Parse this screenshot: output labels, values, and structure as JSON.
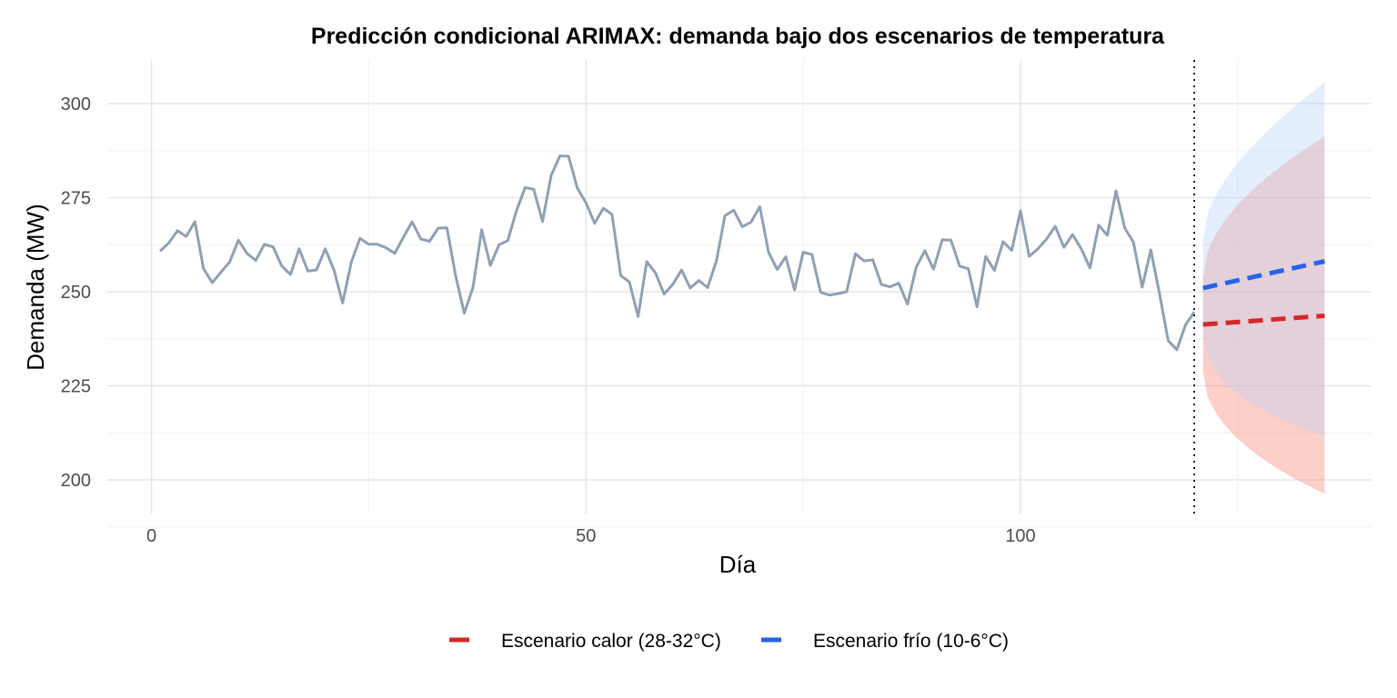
{
  "chart_data": {
    "type": "line",
    "title": "Predicción condicional ARIMAX: demanda bajo dos escenarios de temperatura",
    "xlabel": "Día",
    "ylabel": "Demanda (MW)",
    "xlim": [
      -4,
      140
    ],
    "ylim": [
      191,
      310
    ],
    "x_ticks": [
      0,
      50,
      100
    ],
    "y_ticks": [
      200,
      225,
      250,
      275,
      300
    ],
    "grid": true,
    "legend_position": "bottom",
    "forecast_start_marker": 120,
    "history": {
      "color": "#8fa0b3",
      "x": [
        1,
        2,
        3,
        4,
        5,
        6,
        7,
        8,
        9,
        10,
        11,
        12,
        13,
        14,
        15,
        16,
        17,
        18,
        19,
        20,
        21,
        22,
        23,
        24,
        25,
        26,
        27,
        28,
        29,
        30,
        31,
        32,
        33,
        34,
        35,
        36,
        37,
        38,
        39,
        40,
        41,
        42,
        43,
        44,
        45,
        46,
        47,
        48,
        49,
        50,
        51,
        52,
        53,
        54,
        55,
        56,
        57,
        58,
        59,
        60,
        61,
        62,
        63,
        64,
        65,
        66,
        67,
        68,
        69,
        70,
        71,
        72,
        73,
        74,
        75,
        76,
        77,
        78,
        79,
        80,
        81,
        82,
        83,
        84,
        85,
        86,
        87,
        88,
        89,
        90,
        91,
        92,
        93,
        94,
        95,
        96,
        97,
        98,
        99,
        100,
        101,
        102,
        103,
        104,
        105,
        106,
        107,
        108,
        109,
        110,
        111,
        112,
        113,
        114,
        115,
        116,
        117,
        118,
        119,
        120
      ],
      "y": [
        260.8,
        263.0,
        266.2,
        264.7,
        268.6,
        256.1,
        252.4,
        255.2,
        257.9,
        263.7,
        260.2,
        258.3,
        262.6,
        261.9,
        256.8,
        254.6,
        261.4,
        255.5,
        255.8,
        261.4,
        255.8,
        247.0,
        257.9,
        264.2,
        262.6,
        262.6,
        261.7,
        260.2,
        264.5,
        268.6,
        264.0,
        263.4,
        266.9,
        267.0,
        254.3,
        244.3,
        251.1,
        266.5,
        257.0,
        262.5,
        263.6,
        271.5,
        277.7,
        277.2,
        268.7,
        280.9,
        286.1,
        286.0,
        277.6,
        273.6,
        268.2,
        272.2,
        270.5,
        254.3,
        252.6,
        243.4,
        258.0,
        255.0,
        249.4,
        252.0,
        255.8,
        251.0,
        253.0,
        251.1,
        258.1,
        270.2,
        271.7,
        267.3,
        268.5,
        272.6,
        260.6,
        255.9,
        259.3,
        250.5,
        260.5,
        259.9,
        249.9,
        249.1,
        249.5,
        250.0,
        260.1,
        258.2,
        258.5,
        251.9,
        251.3,
        252.3,
        246.7,
        256.5,
        260.9,
        256.0,
        263.8,
        263.7,
        256.8,
        256.1,
        246.0,
        259.4,
        255.7,
        263.3,
        261.0,
        271.5,
        259.4,
        261.4,
        264.0,
        267.4,
        261.8,
        265.2,
        261.4,
        256.3,
        267.7,
        265.0,
        276.8,
        266.9,
        263.2,
        251.2,
        261.1,
        249.5,
        237.0,
        234.6,
        241.2,
        244.6
      ]
    },
    "series": [
      {
        "name": "Escenario calor (28-32°C)",
        "color": "#d62728",
        "band_color": "#fa8072",
        "x": [
          121,
          135
        ],
        "y": [
          241.3,
          243.6
        ],
        "lower": [
          229.0,
          196.3
        ],
        "upper": [
          253.5,
          291.2
        ]
      },
      {
        "name": "Escenario frío (10-6°C)",
        "color": "#2563eb",
        "band_color": "#b8d2f8",
        "x": [
          121,
          135
        ],
        "y": [
          251.0,
          258.1
        ],
        "lower": [
          239.5,
          211.7
        ],
        "upper": [
          263.4,
          305.6
        ]
      }
    ]
  }
}
